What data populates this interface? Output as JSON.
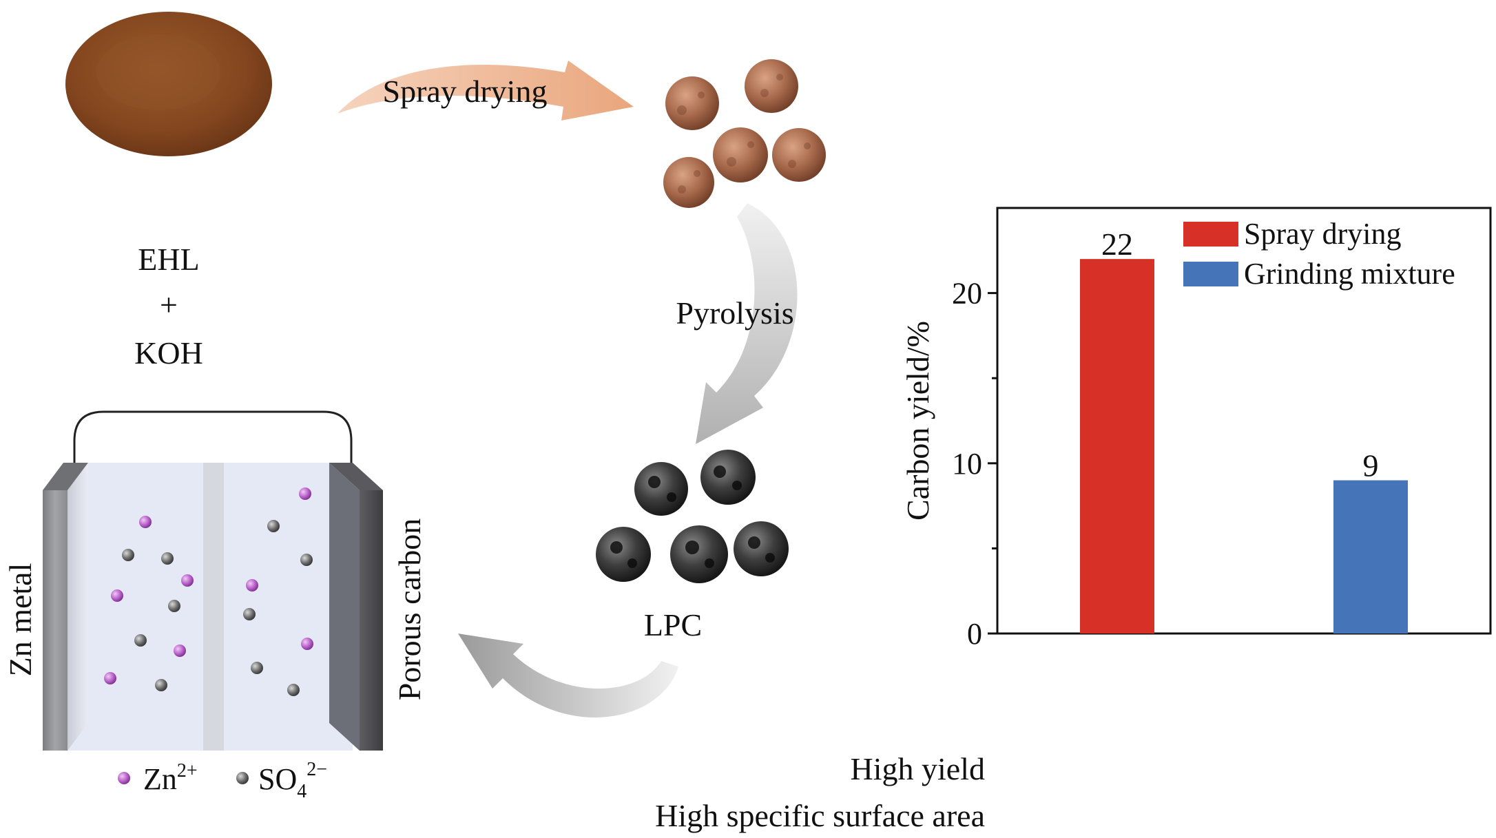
{
  "steps": {
    "spray_drying": "Spray drying",
    "pyrolysis": "Pyrolysis",
    "product": "LPC"
  },
  "precursor": {
    "line1": "EHL",
    "line2": "+",
    "line3": "KOH"
  },
  "battery": {
    "anode_label": "Zn metal",
    "cathode_label": "Porous carbon",
    "legend": {
      "zn_base": "Zn",
      "zn_sup": "2+",
      "so4_base": "SO",
      "so4_sub": "4",
      "so4_sup": "2−"
    },
    "colors": {
      "zn_ion": "#b65ec8",
      "so4_ion": "#6b6b6b"
    }
  },
  "highlights": {
    "line1": "High yield",
    "line2": "High specific surface area"
  },
  "chart_data": {
    "type": "bar",
    "categories": [
      "Spray drying",
      "Grinding mixture"
    ],
    "values": [
      22,
      9
    ],
    "data_labels": [
      "22",
      "9"
    ],
    "colors": [
      "#d63027",
      "#4575b8"
    ],
    "ylabel": "Carbon yield/%",
    "xlabel": "",
    "ylim": [
      0,
      25
    ],
    "yticks": [
      0,
      10,
      20
    ],
    "ytick_labels": [
      "0",
      "10",
      "20"
    ],
    "legend": [
      "Spray drying",
      "Grinding mixture"
    ],
    "legend_position": "top-right",
    "grid": false
  }
}
